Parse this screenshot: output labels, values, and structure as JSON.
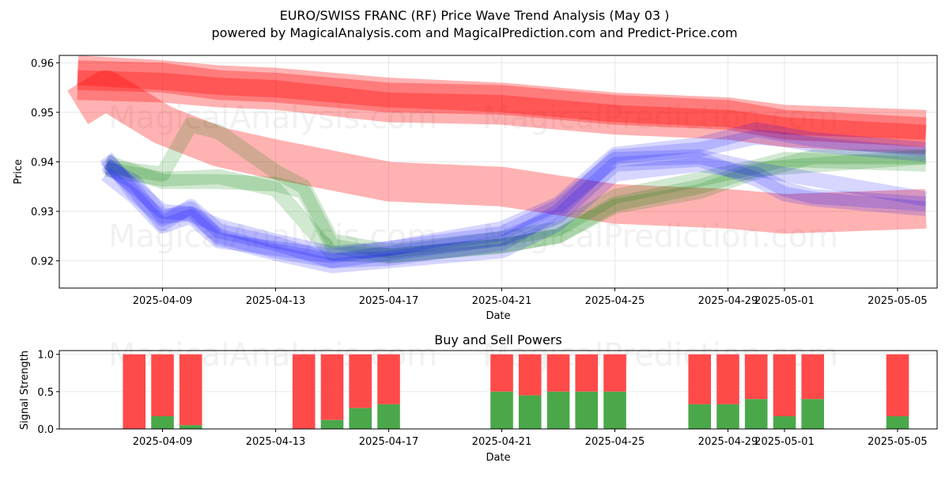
{
  "title_line1": "EURO/SWISS FRANC (RF) Price Wave Trend Analysis (May 03 )",
  "title_line2": "powered by MagicalAnalysis.com and MagicalPrediction.com and Predict-Price.com",
  "watermarks": [
    "MagicalAnalysis.com",
    "MagicalPrediction.com"
  ],
  "chart_data": [
    {
      "type": "line",
      "title": "",
      "xlabel": "Date",
      "ylabel": "Price",
      "x_ticks": [
        "2025-04-09",
        "2025-04-13",
        "2025-04-17",
        "2025-04-21",
        "2025-04-25",
        "2025-04-29",
        "2025-05-01",
        "2025-05-05"
      ],
      "y_ticks": [
        "0.92",
        "0.93",
        "0.94",
        "0.95",
        "0.96"
      ],
      "xlim": [
        "2025-04-06",
        "2025-05-06"
      ],
      "ylim": [
        0.9145,
        0.9615
      ],
      "grid": true,
      "series": [
        {
          "color": "#ff0000",
          "kind": "band",
          "band_width": 0.006,
          "opacity": 0.3,
          "points": [
            [
              "2025-04-06",
              0.9555
            ],
            [
              "2025-04-09",
              0.955
            ],
            [
              "2025-04-11",
              0.954
            ],
            [
              "2025-04-13",
              0.9535
            ],
            [
              "2025-04-17",
              0.951
            ],
            [
              "2025-04-21",
              0.9505
            ],
            [
              "2025-04-25",
              0.9485
            ],
            [
              "2025-04-29",
              0.9475
            ],
            [
              "2025-05-01",
              0.946
            ],
            [
              "2025-05-06",
              0.9445
            ]
          ]
        },
        {
          "color": "#ff0000",
          "kind": "band",
          "band_width": 0.006,
          "opacity": 0.3,
          "points": [
            [
              "2025-04-06",
              0.9585
            ],
            [
              "2025-04-09",
              0.9575
            ],
            [
              "2025-04-11",
              0.9565
            ],
            [
              "2025-04-13",
              0.956
            ],
            [
              "2025-04-17",
              0.954
            ],
            [
              "2025-04-21",
              0.953
            ],
            [
              "2025-04-25",
              0.951
            ],
            [
              "2025-04-29",
              0.95
            ],
            [
              "2025-05-01",
              0.9485
            ],
            [
              "2025-05-06",
              0.9475
            ]
          ]
        },
        {
          "color": "#ff0000",
          "kind": "band",
          "band_width": 0.006,
          "opacity": 0.3,
          "points": [
            [
              "2025-04-06",
              0.9575
            ],
            [
              "2025-04-09",
              0.957
            ],
            [
              "2025-04-11",
              0.9555
            ],
            [
              "2025-04-13",
              0.955
            ],
            [
              "2025-04-17",
              0.953
            ],
            [
              "2025-04-21",
              0.9525
            ],
            [
              "2025-04-25",
              0.9505
            ],
            [
              "2025-04-29",
              0.9495
            ],
            [
              "2025-05-01",
              0.9475
            ],
            [
              "2025-05-06",
              0.946
            ]
          ]
        },
        {
          "color": "#ff0000",
          "kind": "band",
          "band_width": 0.008,
          "opacity": 0.3,
          "points": [
            [
              "2025-04-06",
              0.951
            ],
            [
              "2025-04-07",
              0.9545
            ],
            [
              "2025-04-09",
              0.9475
            ],
            [
              "2025-04-11",
              0.943
            ],
            [
              "2025-04-13",
              0.9405
            ],
            [
              "2025-04-17",
              0.936
            ],
            [
              "2025-04-21",
              0.935
            ],
            [
              "2025-04-25",
              0.9315
            ],
            [
              "2025-04-29",
              0.9305
            ],
            [
              "2025-05-01",
              0.9295
            ],
            [
              "2025-05-06",
              0.9305
            ]
          ]
        },
        {
          "color": "#008000",
          "kind": "band",
          "band_width": 0.003,
          "opacity": 0.18,
          "points": [
            [
              "2025-04-07",
              0.94
            ],
            [
              "2025-04-09",
              0.936
            ],
            [
              "2025-04-11",
              0.936
            ],
            [
              "2025-04-13",
              0.9355
            ],
            [
              "2025-04-14",
              0.934
            ],
            [
              "2025-04-15",
              0.923
            ],
            [
              "2025-04-17",
              0.921
            ],
            [
              "2025-04-21",
              0.923
            ],
            [
              "2025-04-23",
              0.925
            ],
            [
              "2025-04-25",
              0.931
            ],
            [
              "2025-04-28",
              0.934
            ],
            [
              "2025-04-30",
              0.938
            ],
            [
              "2025-05-01",
              0.9395
            ],
            [
              "2025-05-02",
              0.941
            ],
            [
              "2025-05-06",
              0.941
            ]
          ]
        },
        {
          "color": "#008000",
          "kind": "band",
          "band_width": 0.003,
          "opacity": 0.18,
          "points": [
            [
              "2025-04-07",
              0.939
            ],
            [
              "2025-04-09",
              0.9375
            ],
            [
              "2025-04-10",
              0.9475
            ],
            [
              "2025-04-11",
              0.946
            ],
            [
              "2025-04-13",
              0.938
            ],
            [
              "2025-04-14",
              0.935
            ],
            [
              "2025-04-15",
              0.924
            ],
            [
              "2025-04-17",
              0.922
            ],
            [
              "2025-04-21",
              0.9245
            ],
            [
              "2025-04-23",
              0.9265
            ],
            [
              "2025-04-25",
              0.933
            ],
            [
              "2025-04-28",
              0.9365
            ],
            [
              "2025-04-30",
              0.939
            ],
            [
              "2025-05-01",
              0.9405
            ],
            [
              "2025-05-06",
              0.9395
            ]
          ]
        },
        {
          "color": "#008000",
          "kind": "band",
          "band_width": 0.003,
          "opacity": 0.18,
          "points": [
            [
              "2025-04-07",
              0.9385
            ],
            [
              "2025-04-09",
              0.9365
            ],
            [
              "2025-04-11",
              0.937
            ],
            [
              "2025-04-13",
              0.9345
            ],
            [
              "2025-04-15",
              0.9215
            ],
            [
              "2025-04-17",
              0.921
            ],
            [
              "2025-04-21",
              0.923
            ],
            [
              "2025-04-23",
              0.925
            ],
            [
              "2025-04-25",
              0.9315
            ],
            [
              "2025-04-28",
              0.935
            ],
            [
              "2025-04-30",
              0.9385
            ],
            [
              "2025-05-06",
              0.941
            ]
          ]
        },
        {
          "color": "#0000ff",
          "kind": "band",
          "band_width": 0.003,
          "opacity": 0.16,
          "points": [
            [
              "2025-04-07",
              0.9395
            ],
            [
              "2025-04-08",
              0.935
            ],
            [
              "2025-04-09",
              0.93
            ],
            [
              "2025-04-10",
              0.9295
            ],
            [
              "2025-04-11",
              0.925
            ],
            [
              "2025-04-13",
              0.922
            ],
            [
              "2025-04-15",
              0.92
            ],
            [
              "2025-04-17",
              0.9215
            ],
            [
              "2025-04-21",
              0.9245
            ],
            [
              "2025-04-23",
              0.929
            ],
            [
              "2025-04-25",
              0.9395
            ],
            [
              "2025-04-28",
              0.9405
            ],
            [
              "2025-04-30",
              0.9365
            ],
            [
              "2025-05-01",
              0.9335
            ],
            [
              "2025-05-02",
              0.9325
            ],
            [
              "2025-05-06",
              0.9305
            ]
          ]
        },
        {
          "color": "#0000ff",
          "kind": "band",
          "band_width": 0.003,
          "opacity": 0.16,
          "points": [
            [
              "2025-04-07",
              0.941
            ],
            [
              "2025-04-08",
              0.9335
            ],
            [
              "2025-04-09",
              0.9285
            ],
            [
              "2025-04-10",
              0.9305
            ],
            [
              "2025-04-11",
              0.9245
            ],
            [
              "2025-04-13",
              0.9215
            ],
            [
              "2025-04-15",
              0.919
            ],
            [
              "2025-04-17",
              0.92
            ],
            [
              "2025-04-21",
              0.922
            ],
            [
              "2025-04-23",
              0.9275
            ],
            [
              "2025-04-25",
              0.9375
            ],
            [
              "2025-04-28",
              0.9395
            ],
            [
              "2025-04-30",
              0.9375
            ],
            [
              "2025-05-01",
              0.9345
            ],
            [
              "2025-05-02",
              0.933
            ],
            [
              "2025-05-06",
              0.9315
            ]
          ]
        },
        {
          "color": "#0000ff",
          "kind": "band",
          "band_width": 0.003,
          "opacity": 0.16,
          "points": [
            [
              "2025-04-07",
              0.9375
            ],
            [
              "2025-04-08",
              0.933
            ],
            [
              "2025-04-09",
              0.927
            ],
            [
              "2025-04-10",
              0.929
            ],
            [
              "2025-04-11",
              0.924
            ],
            [
              "2025-04-13",
              0.9225
            ],
            [
              "2025-04-15",
              0.921
            ],
            [
              "2025-04-17",
              0.9225
            ],
            [
              "2025-04-21",
              0.9255
            ],
            [
              "2025-04-23",
              0.931
            ],
            [
              "2025-04-25",
              0.9405
            ],
            [
              "2025-04-28",
              0.941
            ],
            [
              "2025-04-30",
              0.9385
            ],
            [
              "2025-05-06",
              0.9325
            ]
          ]
        },
        {
          "color": "#0000ff",
          "kind": "band",
          "band_width": 0.003,
          "opacity": 0.16,
          "points": [
            [
              "2025-04-07",
              0.9405
            ],
            [
              "2025-04-08",
              0.9345
            ],
            [
              "2025-04-09",
              0.9275
            ],
            [
              "2025-04-10",
              0.931
            ],
            [
              "2025-04-11",
              0.926
            ],
            [
              "2025-04-13",
              0.9235
            ],
            [
              "2025-04-15",
              0.92
            ],
            [
              "2025-04-17",
              0.9205
            ],
            [
              "2025-04-21",
              0.9235
            ],
            [
              "2025-04-23",
              0.93
            ],
            [
              "2025-04-25",
              0.941
            ],
            [
              "2025-04-28",
              0.9425
            ],
            [
              "2025-04-30",
              0.945
            ],
            [
              "2025-05-01",
              0.9445
            ],
            [
              "2025-05-02",
              0.9435
            ],
            [
              "2025-05-06",
              0.9415
            ]
          ]
        },
        {
          "color": "#0000ff",
          "kind": "band",
          "band_width": 0.003,
          "opacity": 0.16,
          "points": [
            [
              "2025-04-07",
              0.939
            ],
            [
              "2025-04-08",
              0.936
            ],
            [
              "2025-04-09",
              0.929
            ],
            [
              "2025-04-10",
              0.9295
            ],
            [
              "2025-04-11",
              0.927
            ],
            [
              "2025-04-13",
              0.924
            ],
            [
              "2025-04-15",
              0.9215
            ],
            [
              "2025-04-17",
              0.9225
            ],
            [
              "2025-04-21",
              0.9265
            ],
            [
              "2025-04-23",
              0.9315
            ],
            [
              "2025-04-25",
              0.9415
            ],
            [
              "2025-04-28",
              0.9435
            ],
            [
              "2025-04-30",
              0.9465
            ],
            [
              "2025-05-01",
              0.9455
            ],
            [
              "2025-05-02",
              0.9445
            ],
            [
              "2025-05-06",
              0.9425
            ]
          ]
        }
      ]
    },
    {
      "type": "bar",
      "title": "Buy and Sell Powers",
      "xlabel": "Date",
      "ylabel": "Signal Strength",
      "x_ticks": [
        "2025-04-09",
        "2025-04-13",
        "2025-04-17",
        "2025-04-21",
        "2025-04-25",
        "2025-04-29",
        "2025-05-01",
        "2025-05-05"
      ],
      "y_ticks": [
        "0.0",
        "0.5",
        "1.0"
      ],
      "xlim": [
        "2025-04-06",
        "2025-05-06"
      ],
      "ylim": [
        0,
        1.05
      ],
      "grid": true,
      "buy_color": "#4aa84a",
      "sell_color": "#ff4a4a",
      "bars": [
        {
          "date": "2025-04-08",
          "buy": 0.0
        },
        {
          "date": "2025-04-09",
          "buy": 0.17
        },
        {
          "date": "2025-04-10",
          "buy": 0.05
        },
        {
          "date": "2025-04-14",
          "buy": 0.0
        },
        {
          "date": "2025-04-15",
          "buy": 0.12
        },
        {
          "date": "2025-04-16",
          "buy": 0.28
        },
        {
          "date": "2025-04-17",
          "buy": 0.33
        },
        {
          "date": "2025-04-21",
          "buy": 0.5
        },
        {
          "date": "2025-04-22",
          "buy": 0.45
        },
        {
          "date": "2025-04-23",
          "buy": 0.5
        },
        {
          "date": "2025-04-24",
          "buy": 0.5
        },
        {
          "date": "2025-04-25",
          "buy": 0.5
        },
        {
          "date": "2025-04-28",
          "buy": 0.33
        },
        {
          "date": "2025-04-29",
          "buy": 0.33
        },
        {
          "date": "2025-04-30",
          "buy": 0.4
        },
        {
          "date": "2025-05-01",
          "buy": 0.17
        },
        {
          "date": "2025-05-02",
          "buy": 0.4
        },
        {
          "date": "2025-05-05",
          "buy": 0.17
        }
      ]
    }
  ]
}
